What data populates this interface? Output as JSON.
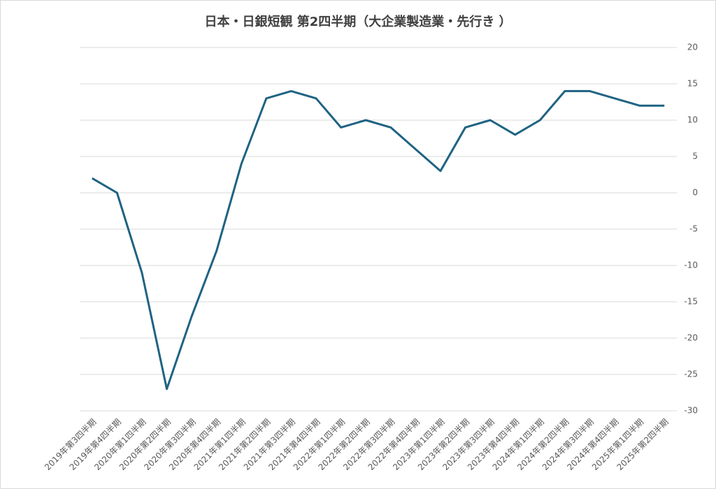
{
  "chart_data": {
    "type": "line",
    "title": "日本・日銀短観  第2四半期（大企業製造業・先行き ）",
    "categories": [
      "2019年第3四半期",
      "2019年第4四半期",
      "2020年第1四半期",
      "2020年第2四半期",
      "2020年第3四半期",
      "2020年第4四半期",
      "2021年第1四半期",
      "2021年第2四半期",
      "2021年第3四半期",
      "2021年第4四半期",
      "2022年第1四半期",
      "2022年第2四半期",
      "2022年第3四半期",
      "2022年第4四半期",
      "2023年第1四半期",
      "2023年第2四半期",
      "2023年第3四半期",
      "2023年第4四半期",
      "2024年第1四半期",
      "2024年第2四半期",
      "2024年第3四半期",
      "2024年第4四半期",
      "2025年第1四半期",
      "2025年第2四半期"
    ],
    "values": [
      2,
      0,
      -11,
      -27,
      -17,
      -8,
      4,
      13,
      14,
      13,
      9,
      10,
      9,
      6,
      3,
      9,
      10,
      8,
      10,
      14,
      14,
      13,
      12,
      12
    ],
    "color": "#1f6383",
    "ylim": [
      -30,
      20
    ],
    "yticks": [
      -30,
      -25,
      -20,
      -15,
      -10,
      -5,
      0,
      5,
      10,
      15,
      20
    ],
    "grid": true
  }
}
